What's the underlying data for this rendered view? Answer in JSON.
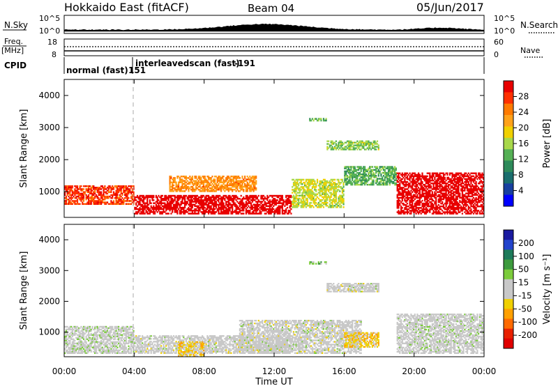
{
  "header": {
    "station": "Hokkaido East (fitACF)",
    "beam": "Beam 04",
    "date": "05/Jun/2017"
  },
  "top_panel": {
    "nsky_label": "N.Sky",
    "nsky_ticks": [
      "10^5",
      "10^0"
    ],
    "nsky_right_ticks": [
      "10^5",
      "10^0"
    ],
    "nsearch_label": "N.Search",
    "freq_label": "Freq.",
    "freq_unit": "[MHz]",
    "freq_ticks": [
      "18",
      "8"
    ],
    "nave_label": "Nave",
    "nave_ticks": [
      "60",
      "0"
    ],
    "cpid_label": "CPID",
    "cpid_segments": [
      {
        "name": "normal (fast)",
        "id": "151"
      },
      {
        "name": "interleavedscan (fast)",
        "id": "-191"
      }
    ]
  },
  "axes": {
    "ylabel": "Slant Range [km]",
    "yticks": [
      "1000",
      "2000",
      "3000",
      "4000"
    ],
    "xticks": [
      "00:00",
      "04:00",
      "08:00",
      "12:00",
      "16:00",
      "20:00",
      "00:00"
    ],
    "xlabel": "Time UT"
  },
  "power_colorbar": {
    "label": "Power [dB]",
    "ticks": [
      "28",
      "24",
      "20",
      "16",
      "12",
      "8",
      "4"
    ],
    "colors": [
      "#e80000",
      "#ff3000",
      "#ff7a00",
      "#ffa21a",
      "#f0d000",
      "#a8d84a",
      "#55b055",
      "#2e8a5a",
      "#1a6e6e",
      "#1840a0",
      "#0000ff"
    ]
  },
  "velocity_colorbar": {
    "label": "Velocity [m s⁻¹]",
    "ticks": [
      "200",
      "100",
      "50",
      "15",
      "-15",
      "-50",
      "-100",
      "-200"
    ],
    "colors": [
      "#1a1aa0",
      "#2244cc",
      "#1d7a5a",
      "#3d9a3d",
      "#7ccc3c",
      "#c8c8c8",
      "#c8c8c8",
      "#f0d000",
      "#ffa000",
      "#ff6a00",
      "#e82000",
      "#e00000"
    ]
  },
  "chart_data": [
    {
      "type": "heatmap",
      "title": "Power",
      "xlabel": "Time UT",
      "ylabel": "Slant Range [km]",
      "xlim": [
        "00:00",
        "24:00"
      ],
      "ylim": [
        200,
        4500
      ],
      "zlabel": "Power [dB]",
      "zlim": [
        0,
        30
      ],
      "regions": [
        {
          "t": [
            "00:00",
            "04:00"
          ],
          "range": [
            600,
            1200
          ],
          "power": 26
        },
        {
          "t": [
            "04:00",
            "13:00"
          ],
          "range": [
            300,
            900
          ],
          "power": 30
        },
        {
          "t": [
            "06:00",
            "11:00"
          ],
          "range": [
            1000,
            1500
          ],
          "power": 22
        },
        {
          "t": [
            "13:00",
            "16:00"
          ],
          "range": [
            500,
            1400
          ],
          "power": 16
        },
        {
          "t": [
            "14:00",
            "15:00"
          ],
          "range": [
            3200,
            3300
          ],
          "power": 12
        },
        {
          "t": [
            "15:00",
            "18:00"
          ],
          "range": [
            2300,
            2600
          ],
          "power": 14
        },
        {
          "t": [
            "16:00",
            "19:00"
          ],
          "range": [
            1200,
            1800
          ],
          "power": 12
        },
        {
          "t": [
            "19:00",
            "24:00"
          ],
          "range": [
            300,
            1600
          ],
          "power": 30
        }
      ]
    },
    {
      "type": "heatmap",
      "title": "Velocity",
      "xlabel": "Time UT",
      "ylabel": "Slant Range [km]",
      "xlim": [
        "00:00",
        "24:00"
      ],
      "ylim": [
        200,
        4500
      ],
      "zlabel": "Velocity [m s⁻¹]",
      "zlim": [
        -250,
        250
      ],
      "regions": [
        {
          "t": [
            "00:00",
            "04:00"
          ],
          "range": [
            300,
            1200
          ],
          "velocity": 10
        },
        {
          "t": [
            "04:00",
            "13:00"
          ],
          "range": [
            300,
            900
          ],
          "velocity": 0
        },
        {
          "t": [
            "06:30",
            "08:00"
          ],
          "range": [
            200,
            700
          ],
          "velocity": -60
        },
        {
          "t": [
            "10:00",
            "17:00"
          ],
          "range": [
            300,
            1400
          ],
          "velocity": 0
        },
        {
          "t": [
            "14:00",
            "15:00"
          ],
          "range": [
            3200,
            3300
          ],
          "velocity": 60
        },
        {
          "t": [
            "15:00",
            "18:00"
          ],
          "range": [
            2300,
            2600
          ],
          "velocity": 0
        },
        {
          "t": [
            "16:00",
            "18:00"
          ],
          "range": [
            500,
            1000
          ],
          "velocity": -60
        },
        {
          "t": [
            "19:00",
            "24:00"
          ],
          "range": [
            300,
            1600
          ],
          "velocity": 5
        }
      ]
    }
  ]
}
